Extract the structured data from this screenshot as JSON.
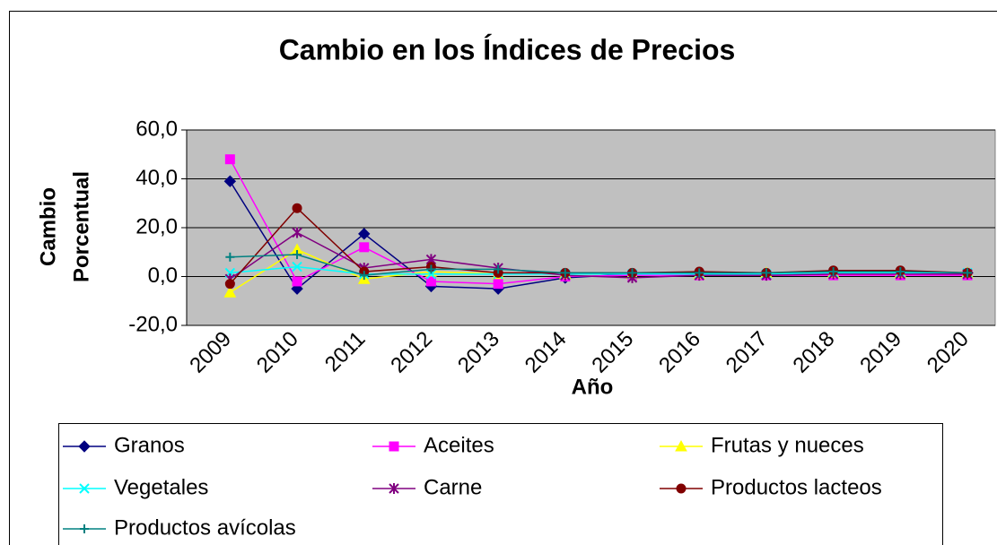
{
  "chart_data": {
    "type": "line",
    "title": "Cambio en los Índices de Precios",
    "x_label": "Año",
    "y_label": [
      "Cambio",
      "Porcentual"
    ],
    "categories": [
      "2009",
      "2010",
      "2011",
      "2012",
      "2013",
      "2014",
      "2015",
      "2016",
      "2017",
      "2018",
      "2019",
      "2020"
    ],
    "ylim": [
      -20,
      60
    ],
    "yticks": [
      {
        "value": -20,
        "label": "-20,0"
      },
      {
        "value": 0,
        "label": "0,0"
      },
      {
        "value": 20,
        "label": "20,0"
      },
      {
        "value": 40,
        "label": "40,0"
      },
      {
        "value": 60,
        "label": "60,0"
      }
    ],
    "grid": true,
    "plot_background": "#c0c0c0",
    "legend": "bottom",
    "series": [
      {
        "name": "Granos",
        "color": "#000080",
        "marker": "diamond",
        "values": [
          39,
          -5,
          17.5,
          -4,
          -5,
          -0.5,
          1,
          1,
          1,
          1.5,
          1,
          1.5
        ]
      },
      {
        "name": "Aceites",
        "color": "#ff00ff",
        "marker": "square",
        "values": [
          48,
          -2,
          12,
          -2,
          -3,
          0,
          0.5,
          0.5,
          0.5,
          0.5,
          0.5,
          0.5
        ]
      },
      {
        "name": "Frutas y nueces",
        "color": "#ffff00",
        "marker": "triangle",
        "values": [
          -6.5,
          11,
          -1,
          2,
          1,
          1,
          1,
          1,
          1.5,
          1.5,
          1.5,
          1.5
        ]
      },
      {
        "name": "Vegetales",
        "color": "#00ffff",
        "marker": "x",
        "values": [
          1.5,
          4,
          1,
          1,
          1,
          1,
          1,
          1,
          1,
          1.5,
          1.5,
          1.5
        ]
      },
      {
        "name": "Carne",
        "color": "#800080",
        "marker": "star",
        "values": [
          -1,
          18,
          3.5,
          7,
          3.5,
          0.5,
          -0.5,
          0.5,
          0.5,
          1,
          1,
          1
        ]
      },
      {
        "name": "Productos lacteos",
        "color": "#800000",
        "marker": "circle",
        "values": [
          -3,
          28,
          2,
          4,
          1.5,
          1.5,
          1.5,
          2,
          1.5,
          2.5,
          2.5,
          1.5
        ]
      },
      {
        "name": "Productos avícolas",
        "color": "#008080",
        "marker": "plus",
        "values": [
          8,
          9,
          0.5,
          3,
          3,
          1.5,
          1.5,
          1.5,
          1.5,
          2,
          2,
          1.5
        ]
      }
    ]
  }
}
